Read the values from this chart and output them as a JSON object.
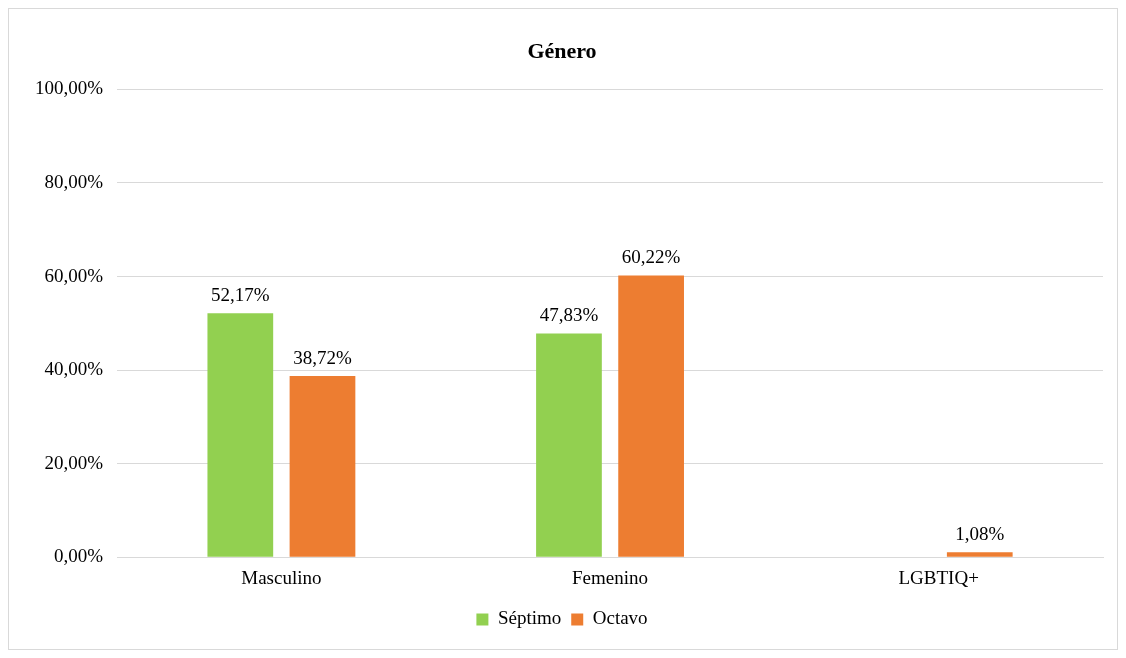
{
  "chart_data": {
    "type": "bar",
    "title": "Género",
    "categories": [
      "Masculino",
      "Femenino",
      "LGBTIQ+"
    ],
    "series": [
      {
        "name": "Séptimo",
        "color": "#92d050",
        "values": [
          52.17,
          47.83,
          null
        ],
        "value_labels": [
          "52,17%",
          "47,83%",
          null
        ]
      },
      {
        "name": "Octavo",
        "color": "#ed7d31",
        "values": [
          38.72,
          60.22,
          1.08
        ],
        "value_labels": [
          "38,72%",
          "60,22%",
          "1,08%"
        ]
      }
    ],
    "ylim": [
      0,
      100
    ],
    "yticks": [
      {
        "value": 0,
        "label": "0,00%"
      },
      {
        "value": 20,
        "label": "20,00%"
      },
      {
        "value": 40,
        "label": "40,00%"
      },
      {
        "value": 60,
        "label": "60,00%"
      },
      {
        "value": 80,
        "label": "80,00%"
      },
      {
        "value": 100,
        "label": "100,00%"
      }
    ],
    "grid": "y",
    "legend": "bottom"
  }
}
